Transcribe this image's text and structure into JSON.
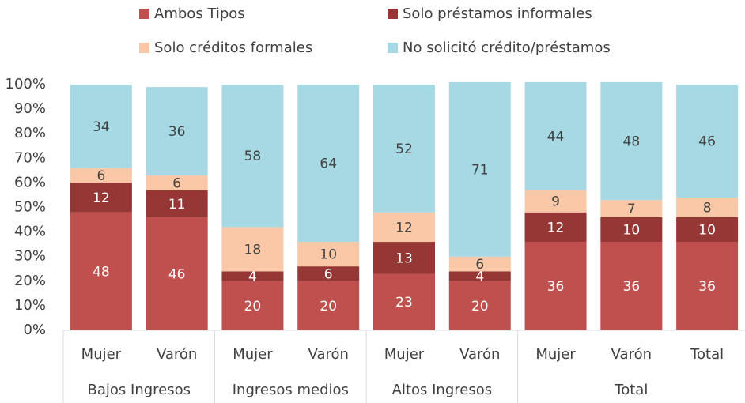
{
  "chart_data": {
    "type": "stacked_bar",
    "groups": [
      {
        "name": "Bajos Ingresos",
        "categories": [
          "Mujer",
          "Varón"
        ]
      },
      {
        "name": "Ingresos medios",
        "categories": [
          "Mujer",
          "Varón"
        ]
      },
      {
        "name": "Altos Ingresos",
        "categories": [
          "Mujer",
          "Varón"
        ]
      },
      {
        "name": "Total",
        "categories": [
          "Mujer",
          "Varón",
          "Total"
        ]
      }
    ],
    "series": [
      {
        "name": "Ambos Tipos",
        "color": "#c0504d",
        "label_color": "#ffffff",
        "values": [
          48,
          46,
          20,
          20,
          23,
          20,
          36,
          36,
          36
        ]
      },
      {
        "name": "Solo préstamos informales",
        "color": "#953735",
        "label_color": "#ffffff",
        "values": [
          12,
          11,
          4,
          6,
          13,
          4,
          12,
          10,
          10
        ]
      },
      {
        "name": "Solo créditos formales",
        "color": "#fac8a6",
        "label_color": "#404040",
        "values": [
          6,
          6,
          18,
          10,
          12,
          6,
          9,
          7,
          8
        ]
      },
      {
        "name": "No solicitó crédito/préstamos",
        "color": "#a7d9e4",
        "label_color": "#404040",
        "values": [
          34,
          36,
          58,
          64,
          52,
          71,
          44,
          48,
          46
        ]
      }
    ],
    "ylim": [
      0,
      100
    ],
    "yticks": [
      {
        "value": 0,
        "label": "0%"
      },
      {
        "value": 10,
        "label": "10%"
      },
      {
        "value": 20,
        "label": "20%"
      },
      {
        "value": 30,
        "label": "30%"
      },
      {
        "value": 40,
        "label": "40%"
      },
      {
        "value": 50,
        "label": "50%"
      },
      {
        "value": 60,
        "label": "60%"
      },
      {
        "value": 70,
        "label": "70%"
      },
      {
        "value": 80,
        "label": "80%"
      },
      {
        "value": 90,
        "label": "90%"
      },
      {
        "value": 100,
        "label": "100%"
      }
    ],
    "legend": "top"
  }
}
